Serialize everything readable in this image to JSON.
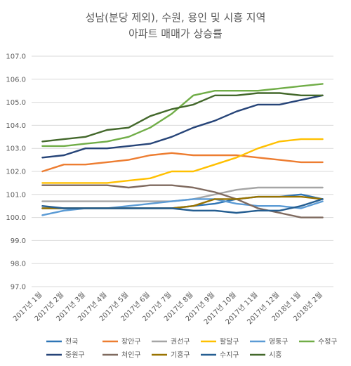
{
  "chart_data": {
    "type": "line",
    "title": "성남(분당 제외), 수원, 용인 및 시흥 지역",
    "subtitle": "아파트 매매가 상승률",
    "xlabel": "",
    "ylabel": "",
    "ylim": [
      97.0,
      107.0
    ],
    "grid": true,
    "legend": "bottom",
    "y_ticks": [
      "97.0",
      "98.0",
      "99.0",
      "100.0",
      "101.0",
      "102.0",
      "103.0",
      "104.0",
      "105.0",
      "106.0",
      "107.0"
    ],
    "categories": [
      "2017년 1월",
      "2017년 2월",
      "2017년 3월",
      "2017년 4월",
      "2017년 5월",
      "2017년 6월",
      "2017년 7월",
      "2017년 8월",
      "2017년 9월",
      "2017년 10월",
      "2017년 11월",
      "2017년 12월",
      "2018년 1월",
      "2018년 2월"
    ],
    "series": [
      {
        "name": "전국",
        "color": "#2e75b6",
        "values": [
          100.4,
          100.4,
          100.4,
          100.4,
          100.4,
          100.4,
          100.4,
          100.5,
          100.6,
          100.8,
          100.9,
          100.9,
          101.0,
          100.8
        ]
      },
      {
        "name": "장안구",
        "color": "#ed7d31",
        "values": [
          102.0,
          102.3,
          102.3,
          102.4,
          102.5,
          102.7,
          102.8,
          102.7,
          102.7,
          102.7,
          102.6,
          102.5,
          102.4,
          102.4
        ]
      },
      {
        "name": "권선구",
        "color": "#a5a5a5",
        "values": [
          100.7,
          100.7,
          100.7,
          100.7,
          100.7,
          100.7,
          100.7,
          100.8,
          101.0,
          101.2,
          101.3,
          101.3,
          101.3,
          101.3
        ]
      },
      {
        "name": "팔달구",
        "color": "#ffc000",
        "values": [
          101.5,
          101.5,
          101.5,
          101.5,
          101.6,
          101.7,
          102.0,
          102.0,
          102.3,
          102.6,
          103.0,
          103.3,
          103.4,
          103.4
        ]
      },
      {
        "name": "영통구",
        "color": "#5b9bd5",
        "values": [
          100.1,
          100.3,
          100.4,
          100.4,
          100.5,
          100.6,
          100.7,
          100.8,
          100.8,
          100.6,
          100.5,
          100.5,
          100.4,
          100.7
        ]
      },
      {
        "name": "수정구",
        "color": "#70ad47",
        "values": [
          103.1,
          103.1,
          103.2,
          103.3,
          103.5,
          103.9,
          104.5,
          105.3,
          105.5,
          105.5,
          105.5,
          105.6,
          105.7,
          105.8
        ]
      },
      {
        "name": "중원구",
        "color": "#264478",
        "values": [
          102.6,
          102.7,
          103.0,
          103.0,
          103.1,
          103.2,
          103.5,
          103.9,
          104.2,
          104.6,
          104.9,
          104.9,
          105.1,
          105.3
        ]
      },
      {
        "name": "처인구",
        "color": "#7f6a5f",
        "values": [
          101.4,
          101.4,
          101.4,
          101.4,
          101.3,
          101.4,
          101.4,
          101.3,
          101.1,
          100.8,
          100.4,
          100.2,
          100.0,
          100.0
        ]
      },
      {
        "name": "기흥구",
        "color": "#997300",
        "values": [
          100.4,
          100.4,
          100.4,
          100.4,
          100.4,
          100.4,
          100.4,
          100.5,
          100.8,
          100.8,
          100.9,
          100.9,
          100.9,
          100.8
        ]
      },
      {
        "name": "수지구",
        "color": "#255e91",
        "values": [
          100.5,
          100.4,
          100.4,
          100.4,
          100.4,
          100.4,
          100.4,
          100.3,
          100.3,
          100.2,
          100.3,
          100.3,
          100.5,
          100.8
        ]
      },
      {
        "name": "시흥",
        "color": "#43682b",
        "values": [
          103.3,
          103.4,
          103.5,
          103.8,
          103.9,
          104.4,
          104.7,
          104.9,
          105.3,
          105.3,
          105.4,
          105.4,
          105.3,
          105.3
        ]
      }
    ]
  }
}
